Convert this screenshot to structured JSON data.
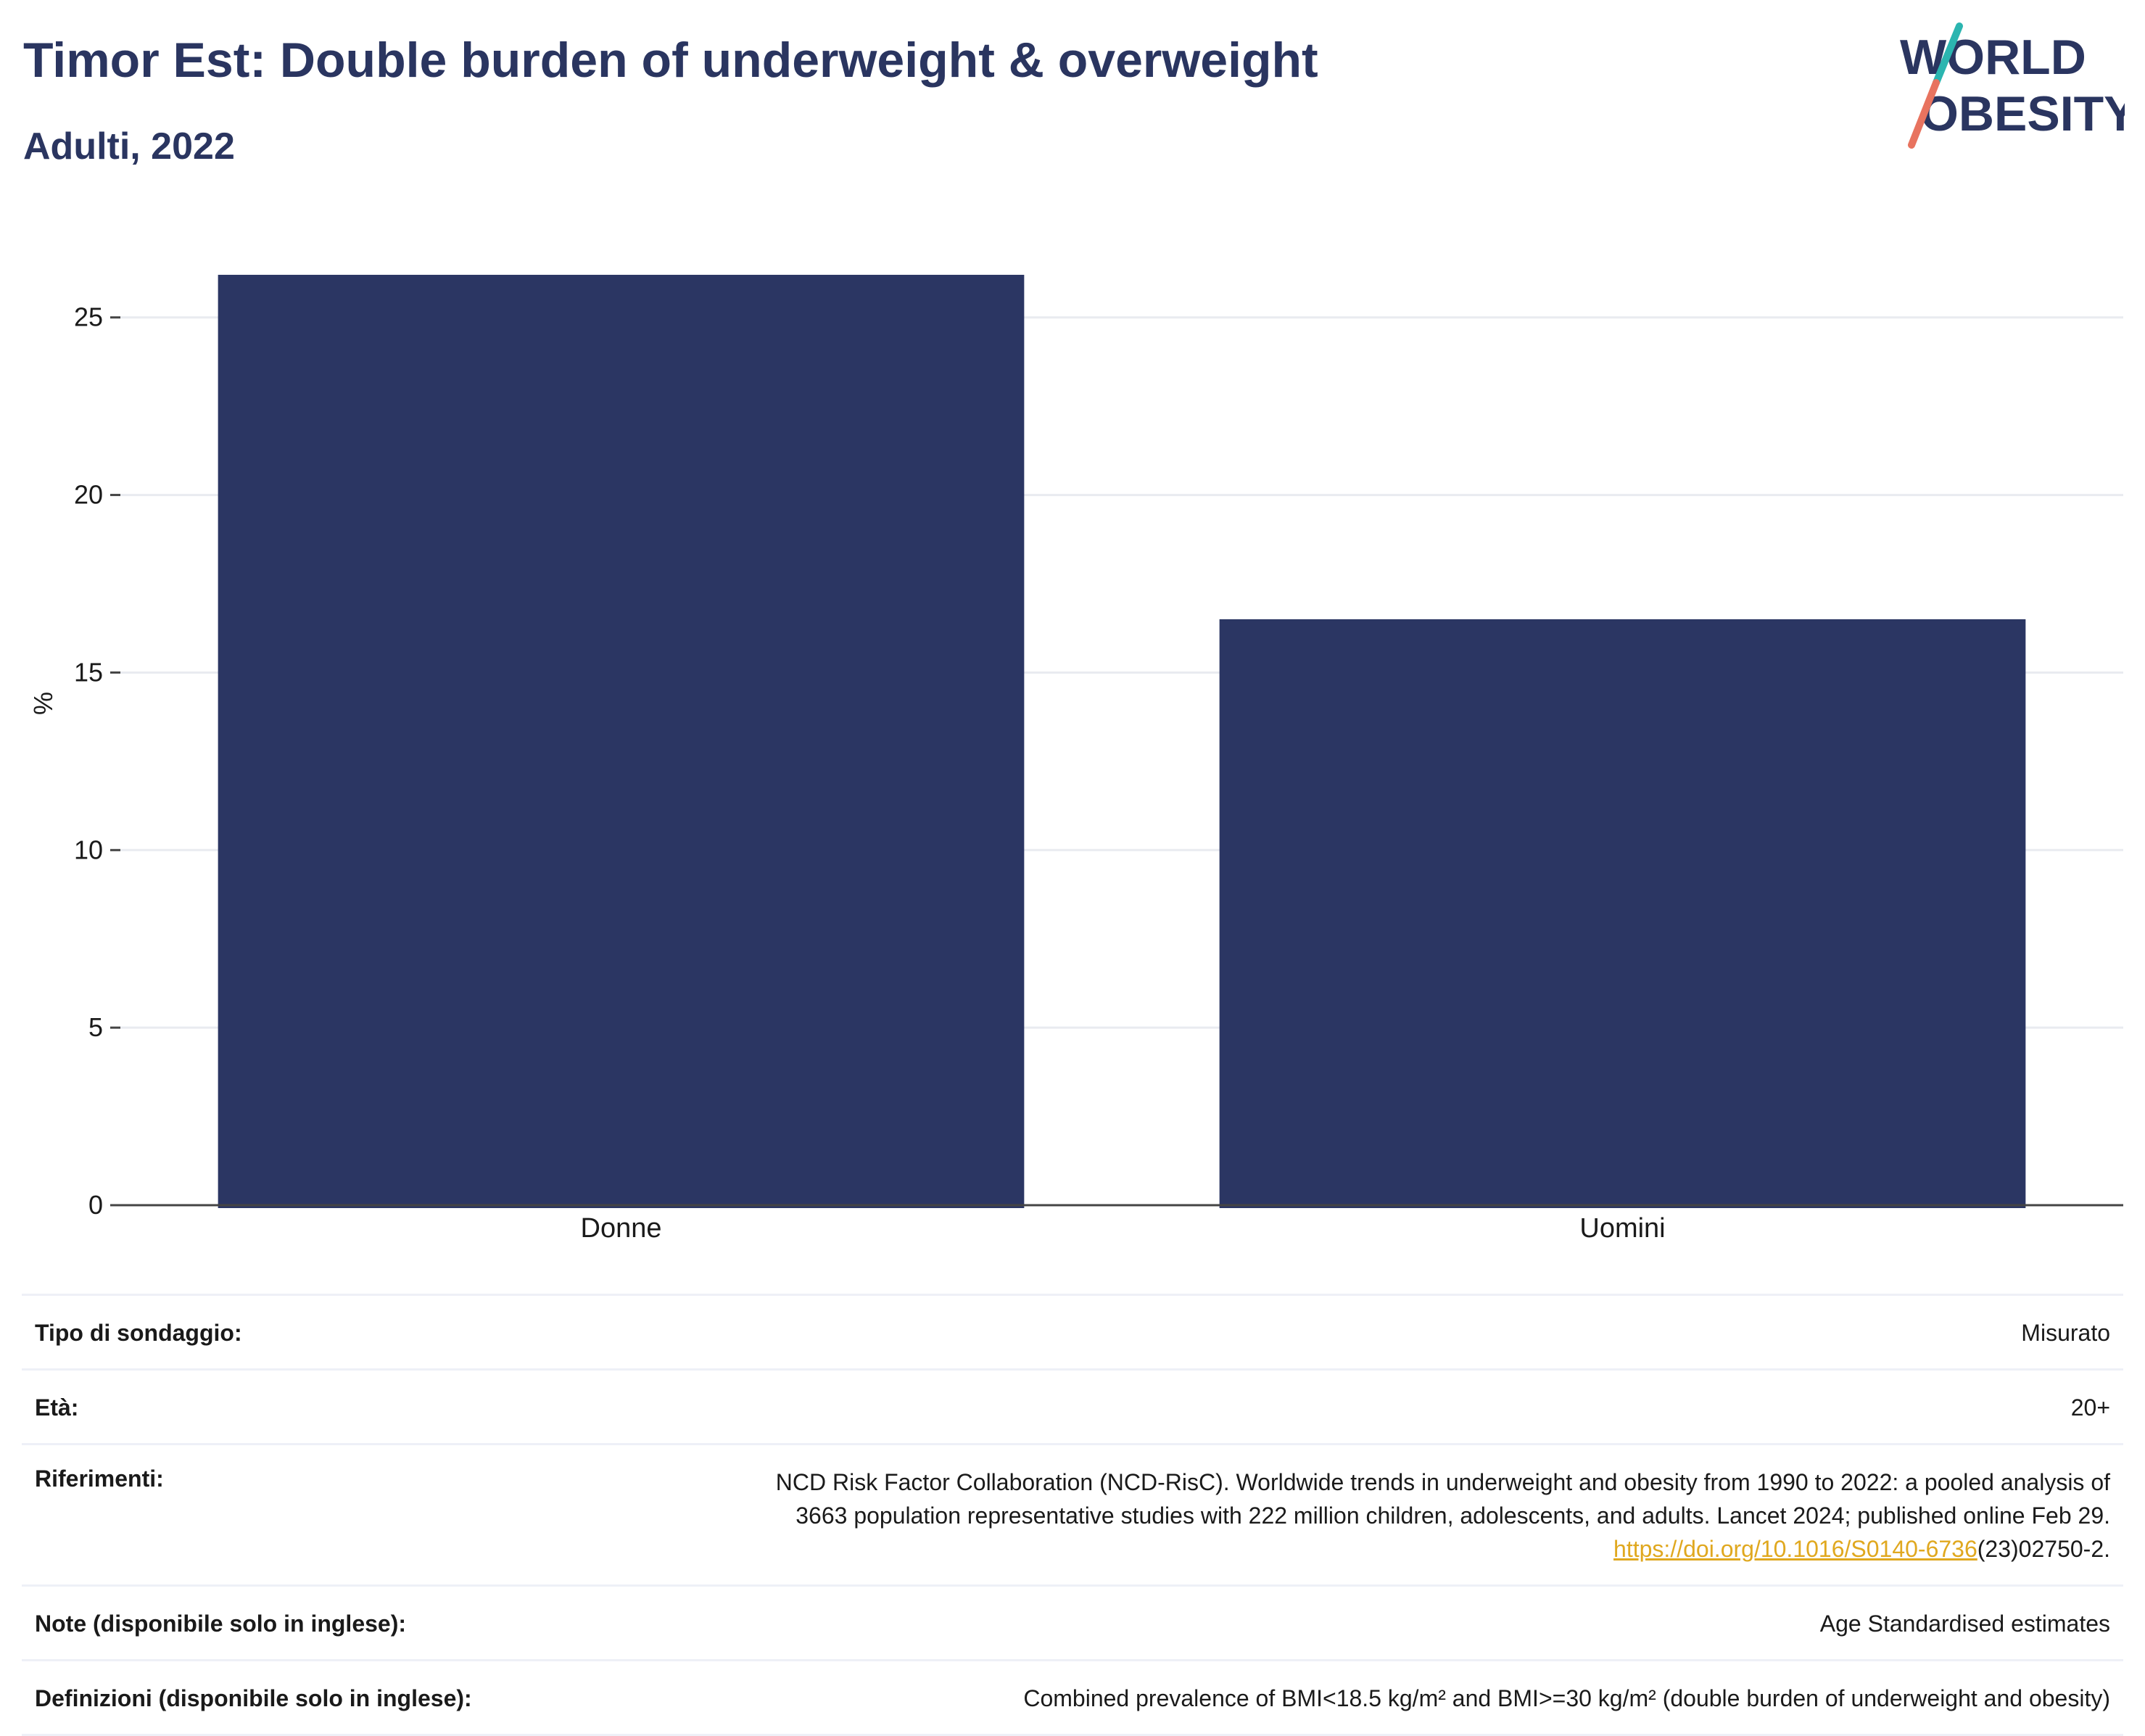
{
  "header": {
    "title": "Timor Est: Double burden of underweight & overweight",
    "subtitle": "Adulti, 2022"
  },
  "logo": {
    "line1": "WORLD",
    "line2": "OBESITY",
    "colors": {
      "text": "#2a3560",
      "slash_top": "#2bb5b0",
      "slash_bottom": "#e8735f"
    }
  },
  "chart_data": {
    "type": "bar",
    "categories": [
      "Donne",
      "Uomini"
    ],
    "values": [
      26.2,
      16.5
    ],
    "ylabel": "%",
    "xlabel": "",
    "ylim": [
      0,
      27.2
    ],
    "yticks": [
      0,
      5,
      10,
      15,
      20,
      25
    ],
    "grid": true,
    "bar_color": "#2b3663"
  },
  "info": [
    {
      "label": "Tipo di sondaggio:",
      "value": "Misurato"
    },
    {
      "label": "Età:",
      "value": "20+"
    },
    {
      "label": "Riferimenti:",
      "value_lines": [
        "NCD Risk Factor Collaboration (NCD-RisC). Worldwide trends in underweight and obesity from 1990 to 2022: a pooled analysis of",
        "3663 population representative studies with 222 million children, adolescents, and adults. Lancet 2024; published online Feb 29."
      ],
      "link_text": "https://doi.org/10.1016/S0140-6736",
      "link_suffix": "(23)02750-2."
    },
    {
      "label": "Note (disponibile solo in inglese):",
      "value": "Age Standardised estimates"
    },
    {
      "label": "Definizioni (disponibile solo in inglese):",
      "value": "Combined prevalence of BMI<18.5 kg/m² and BMI>=30 kg/m² (double burden of underweight and obesity)"
    }
  ]
}
